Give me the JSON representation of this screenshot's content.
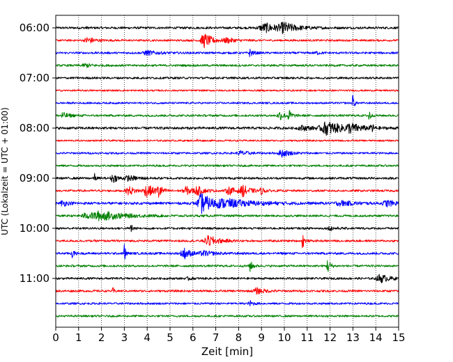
{
  "chart_data": {
    "type": "line",
    "title": "",
    "xlabel": "Zeit  [min]",
    "ylabel": "UTC (Lokalzeit = UTC + 01:00)",
    "xlim": [
      0,
      15
    ],
    "x_ticks": [
      0,
      1,
      2,
      3,
      4,
      5,
      6,
      7,
      8,
      9,
      10,
      11,
      12,
      13,
      14,
      15
    ],
    "y_tick_labels": [
      "06:00",
      "07:00",
      "08:00",
      "09:00",
      "10:00",
      "11:00"
    ],
    "y_tick_rows": [
      0,
      4,
      8,
      12,
      16,
      20
    ],
    "grid": "vertical dotted",
    "colors": [
      "#000000",
      "#ff0000",
      "#0000ff",
      "#008000"
    ],
    "rows": [
      {
        "label": "06:00",
        "color": "#000000",
        "noise": 1.6,
        "events": [
          {
            "t": 9.2,
            "amp": 6,
            "width": 0.5
          },
          {
            "t": 10.0,
            "amp": 6,
            "width": 0.35
          },
          {
            "t": 1.3,
            "amp": 1.8,
            "width": 0.05
          }
        ]
      },
      {
        "label": "06:15",
        "color": "#ff0000",
        "noise": 1.4,
        "events": [
          {
            "t": 1.4,
            "amp": 5,
            "width": 0.2
          },
          {
            "t": 6.5,
            "amp": 10,
            "width": 0.25
          },
          {
            "t": 7.5,
            "amp": 3,
            "width": 0.25
          }
        ]
      },
      {
        "label": "06:30",
        "color": "#0000ff",
        "noise": 1.5,
        "events": [
          {
            "t": 4.0,
            "amp": 3,
            "width": 0.3
          },
          {
            "t": 8.5,
            "amp": 5,
            "width": 0.1
          },
          {
            "t": 11.4,
            "amp": 2,
            "width": 0.1
          }
        ]
      },
      {
        "label": "06:45",
        "color": "#008000",
        "noise": 1.5,
        "events": [
          {
            "t": 1.3,
            "amp": 2.5,
            "width": 0.2
          }
        ]
      },
      {
        "label": "07:00",
        "color": "#000000",
        "noise": 1.5,
        "events": []
      },
      {
        "label": "07:15",
        "color": "#ff0000",
        "noise": 1.2,
        "events": []
      },
      {
        "label": "07:30",
        "color": "#0000ff",
        "noise": 1.3,
        "events": [
          {
            "t": 13.0,
            "amp": 15,
            "width": 0.04
          }
        ]
      },
      {
        "label": "07:45",
        "color": "#008000",
        "noise": 1.5,
        "events": [
          {
            "t": 0.3,
            "amp": 4,
            "width": 0.2
          },
          {
            "t": 9.8,
            "amp": 6,
            "width": 0.15
          },
          {
            "t": 10.2,
            "amp": 8,
            "width": 0.08
          },
          {
            "t": 13.7,
            "amp": 14,
            "width": 0.04
          }
        ]
      },
      {
        "label": "08:00",
        "color": "#000000",
        "noise": 1.8,
        "events": [
          {
            "t": 11.9,
            "amp": 9,
            "width": 0.5
          },
          {
            "t": 12.9,
            "amp": 5,
            "width": 0.3
          },
          {
            "t": 13.8,
            "amp": 13,
            "width": 0.04
          },
          {
            "t": 10.8,
            "amp": 3,
            "width": 0.3
          }
        ]
      },
      {
        "label": "08:15",
        "color": "#ff0000",
        "noise": 1.2,
        "events": [
          {
            "t": 6.2,
            "amp": 2,
            "width": 0.05
          }
        ]
      },
      {
        "label": "08:30",
        "color": "#0000ff",
        "noise": 1.4,
        "events": [
          {
            "t": 8.1,
            "amp": 3,
            "width": 0.25
          },
          {
            "t": 9.9,
            "amp": 5,
            "width": 0.25
          }
        ]
      },
      {
        "label": "08:45",
        "color": "#008000",
        "noise": 1.4,
        "events": []
      },
      {
        "label": "09:00",
        "color": "#000000",
        "noise": 1.6,
        "events": [
          {
            "t": 1.7,
            "amp": 6,
            "width": 0.04
          },
          {
            "t": 2.5,
            "amp": 6,
            "width": 0.15
          },
          {
            "t": 3.2,
            "amp": 3,
            "width": 0.3
          }
        ]
      },
      {
        "label": "09:15",
        "color": "#ff0000",
        "noise": 1.5,
        "events": [
          {
            "t": 3.2,
            "amp": 6,
            "width": 0.2
          },
          {
            "t": 4.0,
            "amp": 8,
            "width": 0.25
          },
          {
            "t": 4.5,
            "amp": 11,
            "width": 0.08
          },
          {
            "t": 5.7,
            "amp": 6,
            "width": 0.2
          },
          {
            "t": 6.2,
            "amp": 5,
            "width": 0.2
          },
          {
            "t": 7.6,
            "amp": 5,
            "width": 0.25
          },
          {
            "t": 8.2,
            "amp": 7,
            "width": 0.2
          },
          {
            "t": 9.0,
            "amp": 4,
            "width": 0.1
          }
        ]
      },
      {
        "label": "09:30",
        "color": "#0000ff",
        "noise": 1.8,
        "events": [
          {
            "t": 0.3,
            "amp": 4,
            "width": 0.15
          },
          {
            "t": 6.4,
            "amp": 14,
            "width": 0.3
          },
          {
            "t": 7.5,
            "amp": 5,
            "width": 0.9
          },
          {
            "t": 12.5,
            "amp": 3,
            "width": 0.4
          },
          {
            "t": 14.5,
            "amp": 4,
            "width": 0.3
          }
        ]
      },
      {
        "label": "09:45",
        "color": "#008000",
        "noise": 1.5,
        "events": [
          {
            "t": 2.0,
            "amp": 6,
            "width": 0.7
          },
          {
            "t": 1.3,
            "amp": 3,
            "width": 0.3
          }
        ]
      },
      {
        "label": "10:00",
        "color": "#000000",
        "noise": 1.5,
        "events": [
          {
            "t": 3.3,
            "amp": 11,
            "width": 0.04
          },
          {
            "t": 12.0,
            "amp": 3,
            "width": 0.15
          }
        ]
      },
      {
        "label": "10:15",
        "color": "#ff0000",
        "noise": 1.5,
        "events": [
          {
            "t": 6.7,
            "amp": 7,
            "width": 0.3
          },
          {
            "t": 10.8,
            "amp": 16,
            "width": 0.04
          }
        ]
      },
      {
        "label": "10:30",
        "color": "#0000ff",
        "noise": 1.6,
        "events": [
          {
            "t": 0.7,
            "amp": 7,
            "width": 0.06
          },
          {
            "t": 3.0,
            "amp": 15,
            "width": 0.04
          },
          {
            "t": 5.6,
            "amp": 8,
            "width": 0.2
          },
          {
            "t": 6.5,
            "amp": 3,
            "width": 0.3
          }
        ]
      },
      {
        "label": "10:45",
        "color": "#008000",
        "noise": 1.5,
        "events": [
          {
            "t": 8.5,
            "amp": 8,
            "width": 0.08
          },
          {
            "t": 11.9,
            "amp": 10,
            "width": 0.08
          }
        ]
      },
      {
        "label": "11:00",
        "color": "#000000",
        "noise": 1.5,
        "events": [
          {
            "t": 14.2,
            "amp": 6,
            "width": 0.25
          },
          {
            "t": 5.8,
            "amp": 2,
            "width": 0.1
          }
        ]
      },
      {
        "label": "11:15",
        "color": "#ff0000",
        "noise": 1.5,
        "events": [
          {
            "t": 2.5,
            "amp": 5,
            "width": 0.04
          },
          {
            "t": 8.8,
            "amp": 4,
            "width": 0.25
          }
        ]
      },
      {
        "label": "11:30",
        "color": "#0000ff",
        "noise": 1.4,
        "events": [
          {
            "t": 8.5,
            "amp": 4,
            "width": 0.1
          }
        ]
      },
      {
        "label": "11:45",
        "color": "#008000",
        "noise": 1.4,
        "events": []
      }
    ]
  }
}
